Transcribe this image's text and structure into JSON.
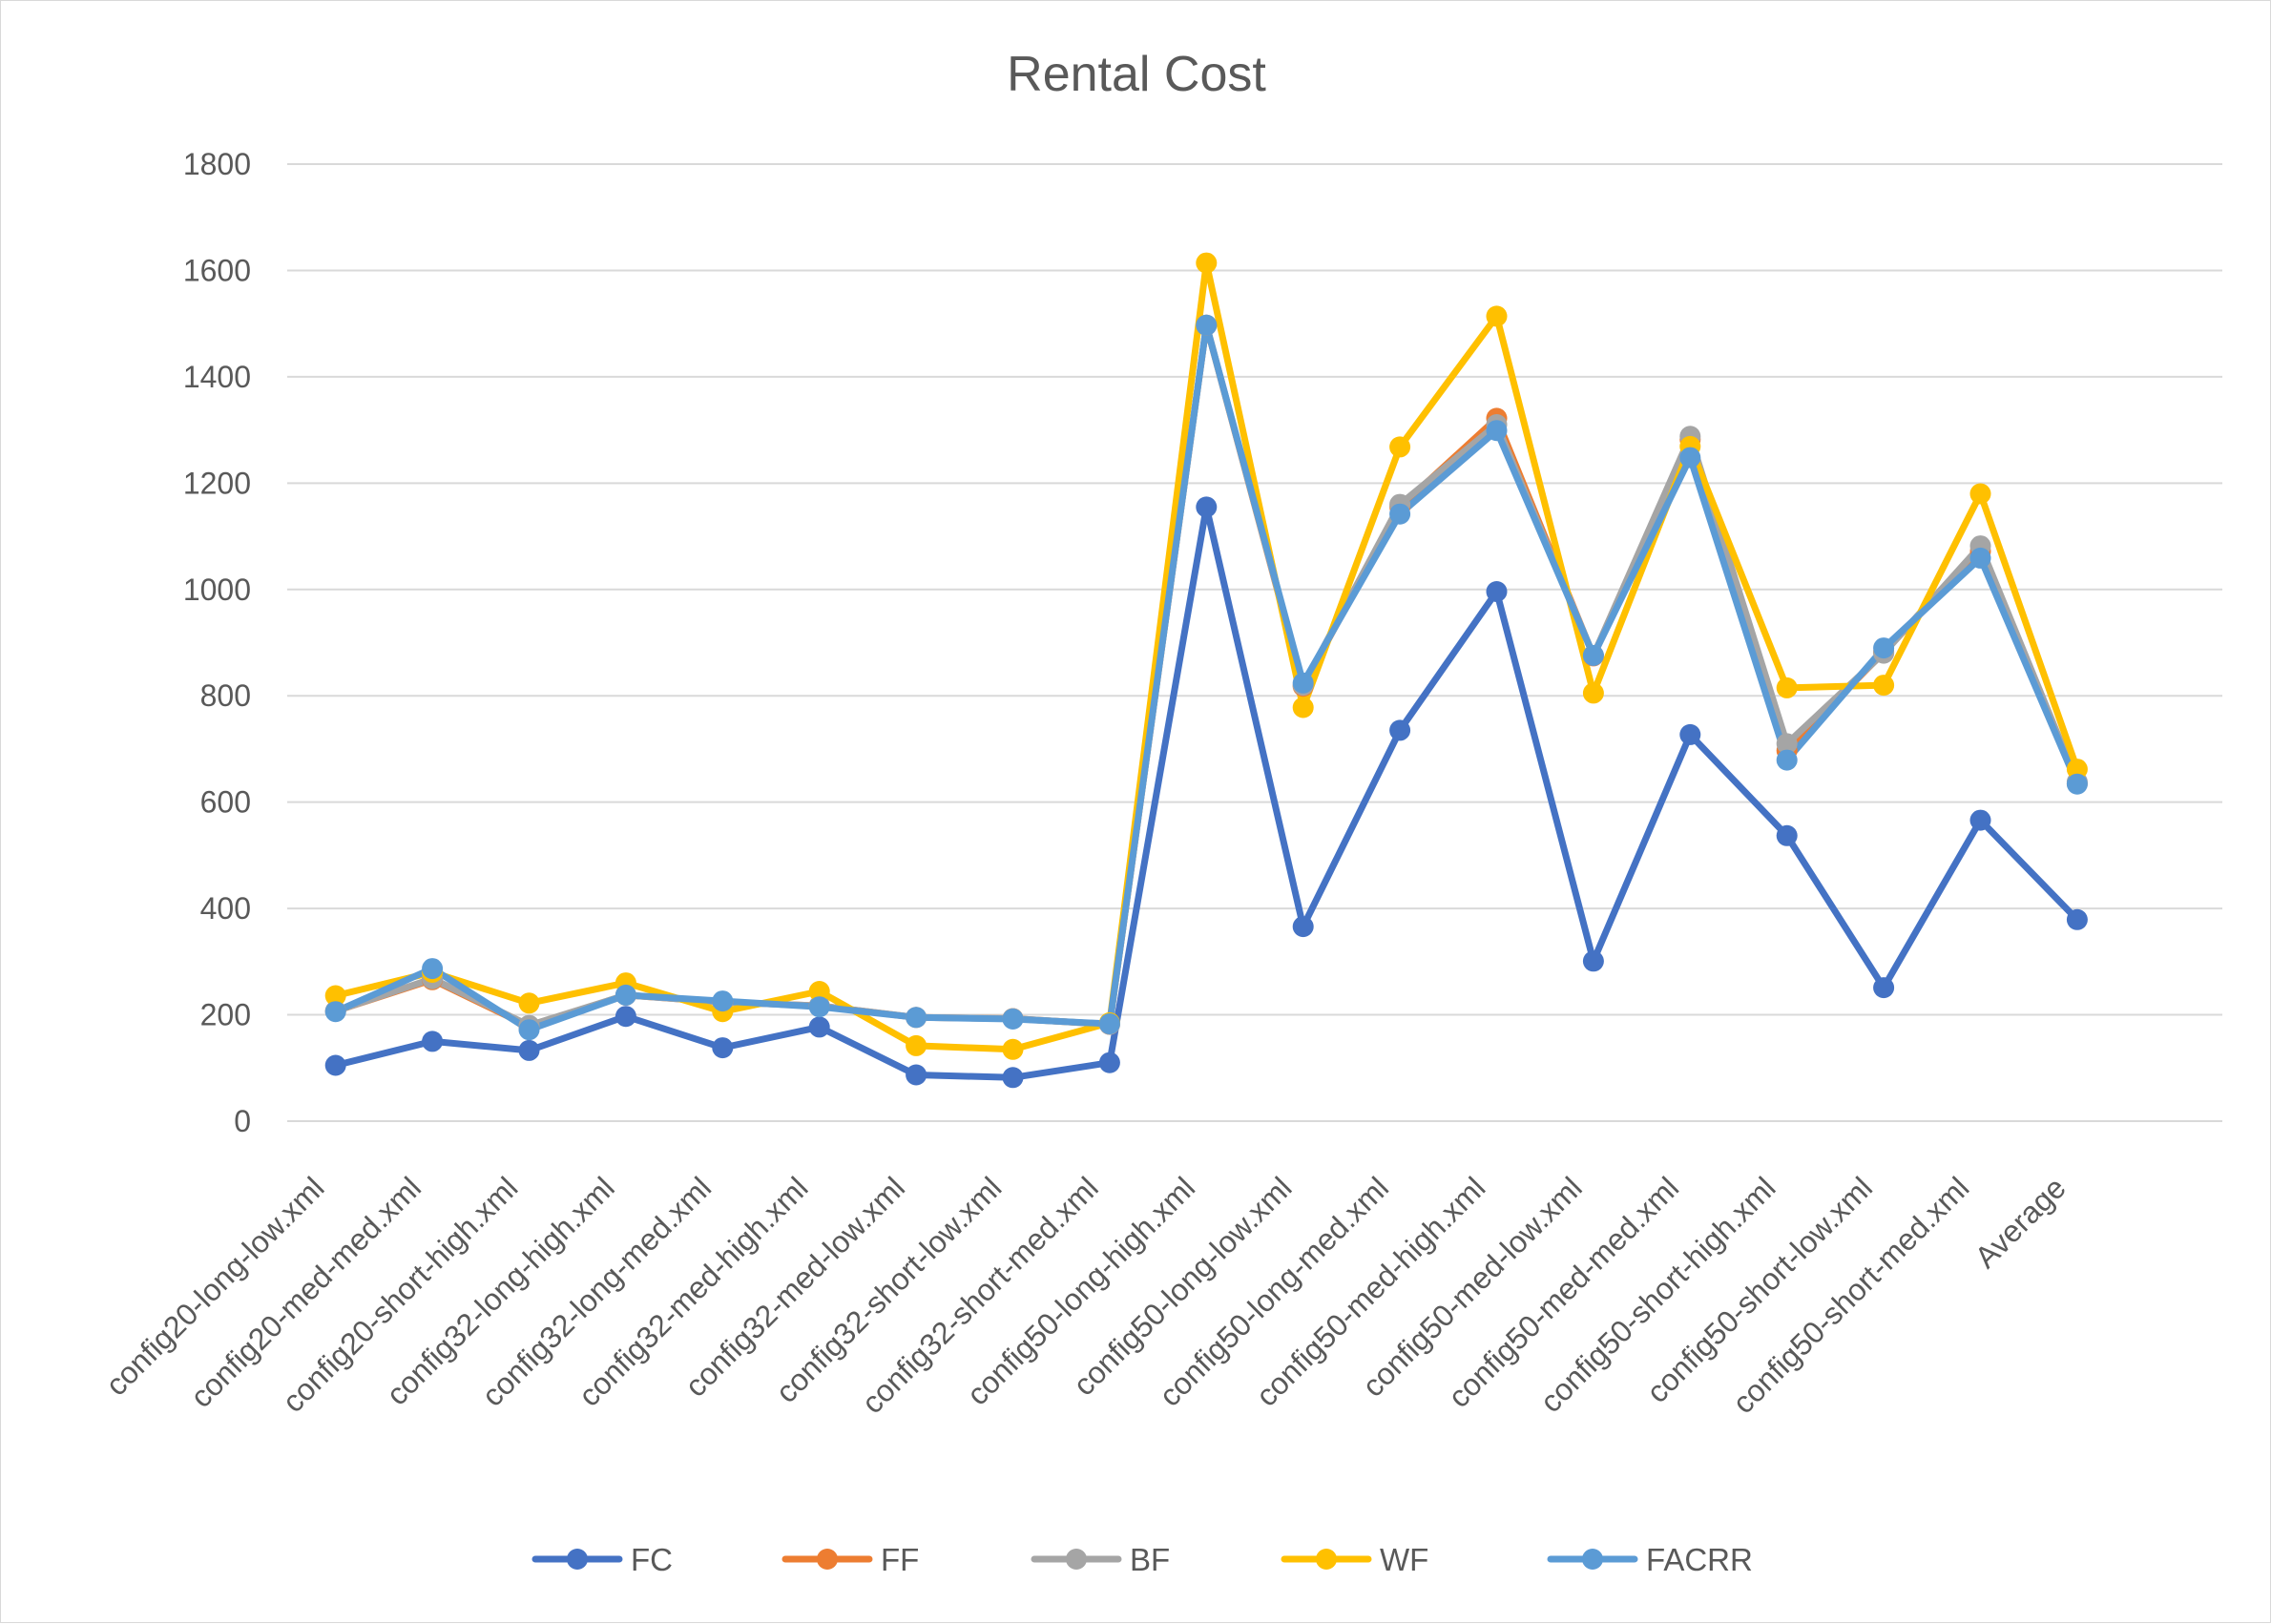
{
  "chart_data": {
    "type": "line",
    "title": "Rental Cost",
    "xlabel": "",
    "ylabel": "",
    "ylim": [
      0,
      1800
    ],
    "yticks": [
      0,
      200,
      400,
      600,
      800,
      1000,
      1200,
      1400,
      1600,
      1800
    ],
    "grid": true,
    "legend_position": "bottom",
    "categories": [
      "config20-long-low.xml",
      "config20-med-med.xml",
      "config20-short-high.xml",
      "config32-long-high.xml",
      "config32-long-med.xml",
      "config32-med-high.xml",
      "config32-med-low.xml",
      "config32-short-low.xml",
      "config32-short-med.xml",
      "config50-long-high.xml",
      "config50-long-low.xml",
      "config50-long-med.xml",
      "config50-med-high.xml",
      "config50-med-low.xml",
      "config50-med-med.xml",
      "config50-short-high.xml",
      "config50-short-low.xml",
      "config50-short-med.xml",
      "Average",
      ""
    ],
    "series": [
      {
        "name": "FC",
        "color": "#4472c4",
        "values": [
          105,
          150,
          133,
          197,
          138,
          177,
          87,
          82,
          110,
          1155,
          366,
          735,
          996,
          301,
          727,
          537,
          251,
          566,
          379,
          null
        ]
      },
      {
        "name": "FF",
        "color": "#ed7d31",
        "values": [
          207,
          266,
          178,
          237,
          224,
          217,
          195,
          193,
          182,
          1497,
          818,
          1155,
          1322,
          875,
          1282,
          697,
          882,
          1072,
          635,
          null
        ]
      },
      {
        "name": "BF",
        "color": "#a5a5a5",
        "values": [
          207,
          268,
          180,
          237,
          224,
          217,
          195,
          193,
          182,
          1497,
          820,
          1160,
          1310,
          876,
          1288,
          710,
          880,
          1082,
          638,
          null
        ]
      },
      {
        "name": "WF",
        "color": "#ffc000",
        "values": [
          236,
          280,
          222,
          260,
          206,
          244,
          142,
          135,
          185,
          1614,
          778,
          1268,
          1514,
          805,
          1269,
          815,
          820,
          1180,
          662,
          null
        ]
      },
      {
        "name": "FACRR",
        "color": "#5b9bd5",
        "values": [
          206,
          287,
          172,
          237,
          226,
          215,
          195,
          192,
          183,
          1497,
          824,
          1142,
          1299,
          876,
          1248,
          679,
          890,
          1059,
          634,
          null
        ]
      }
    ]
  }
}
